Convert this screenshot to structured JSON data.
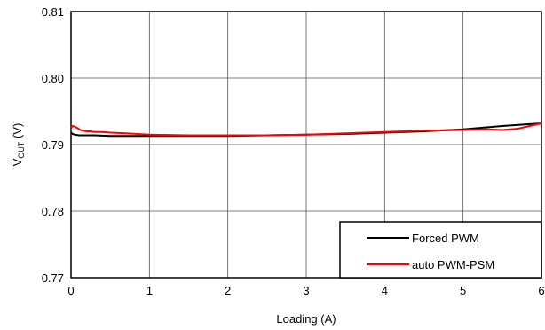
{
  "chart_data": {
    "type": "line",
    "xlabel": "Loading (A)",
    "ylabel": {
      "main": "V",
      "sub": "OUT",
      "unit": " (V)"
    },
    "xlim": [
      0,
      6
    ],
    "ylim": [
      0.77,
      0.81
    ],
    "xticks": [
      0,
      1,
      2,
      3,
      4,
      5,
      6
    ],
    "xtick_labels": [
      "0",
      "1",
      "2",
      "3",
      "4",
      "5",
      "6"
    ],
    "yticks": [
      0.77,
      0.78,
      0.79,
      0.8,
      0.81
    ],
    "ytick_labels": [
      "0.77",
      "0.78",
      "0.79",
      "0.80",
      "0.81"
    ],
    "grid": true,
    "legend_position": "bottom-right",
    "series": [
      {
        "name": "Forced PWM",
        "color": "#000000",
        "x": [
          0,
          0.02,
          0.05,
          0.1,
          0.2,
          0.3,
          0.5,
          0.8,
          1.0,
          1.5,
          2.0,
          2.5,
          3.0,
          3.5,
          4.0,
          4.5,
          5.0,
          5.5,
          6.0
        ],
        "y": [
          0.7918,
          0.7916,
          0.7915,
          0.7914,
          0.7914,
          0.7914,
          0.7913,
          0.7913,
          0.7913,
          0.7913,
          0.7913,
          0.7914,
          0.7915,
          0.7916,
          0.7918,
          0.792,
          0.7923,
          0.7928,
          0.7932
        ]
      },
      {
        "name": "auto PWM-PSM",
        "color": "#ff0000",
        "x": [
          0,
          0.02,
          0.05,
          0.08,
          0.12,
          0.15,
          0.2,
          0.25,
          0.3,
          0.4,
          0.5,
          0.7,
          1.0,
          1.5,
          2.0,
          2.5,
          3.0,
          3.5,
          4.0,
          4.5,
          5.0,
          5.3,
          5.5,
          5.7,
          5.85,
          6.0
        ],
        "y": [
          0.7925,
          0.7928,
          0.7927,
          0.7925,
          0.7922,
          0.7921,
          0.792,
          0.792,
          0.7919,
          0.7919,
          0.7918,
          0.7917,
          0.7915,
          0.7914,
          0.7914,
          0.7914,
          0.7915,
          0.7917,
          0.7919,
          0.7921,
          0.7922,
          0.7923,
          0.7922,
          0.7924,
          0.7928,
          0.7932
        ]
      }
    ]
  }
}
